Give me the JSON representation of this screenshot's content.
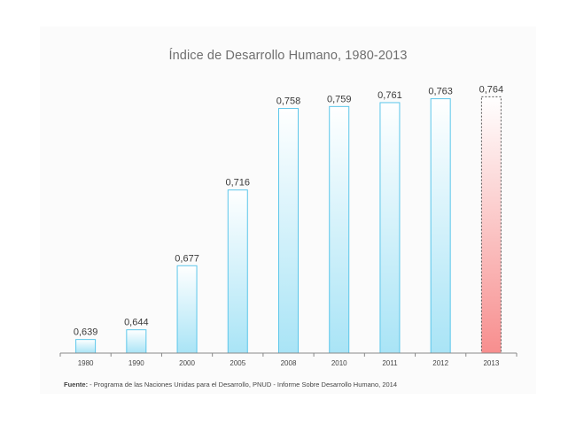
{
  "chart_data": {
    "type": "bar",
    "title": "Índice de Desarrollo Humano, 1980-2013",
    "categories": [
      "1980",
      "1990",
      "2000",
      "2005",
      "2008",
      "2010",
      "2011",
      "2012",
      "2013"
    ],
    "values": [
      0.639,
      0.644,
      0.677,
      0.716,
      0.758,
      0.759,
      0.761,
      0.763,
      0.764
    ],
    "value_labels": [
      "0,639",
      "0,644",
      "0,677",
      "0,716",
      "0,758",
      "0,759",
      "0,761",
      "0,763",
      "0,764"
    ],
    "highlight_index": 8,
    "ylim": [
      0.632,
      0.766
    ],
    "xlabel": "",
    "ylabel": "",
    "grid": false,
    "colors": {
      "bar_fill_top": "#ffffff",
      "bar_fill_bottom": "#a9e4f6",
      "bar_stroke": "#5cc6ea",
      "highlight_fill_top": "#ffffff",
      "highlight_fill_bottom": "#f78e8e",
      "highlight_stroke": "#555555",
      "axis": "#888888"
    }
  },
  "source": {
    "label": "Fuente:",
    "text": " - Programa de las Naciones Unidas para el Desarrollo, PNUD   - Informe Sobre Desarrollo Humano, 2014"
  }
}
